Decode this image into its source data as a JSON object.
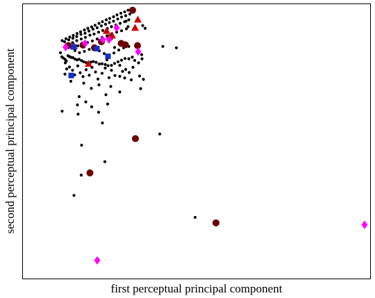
{
  "chart_data": {
    "type": "scatter",
    "title": "",
    "xlabel": "first perceptual principal component",
    "ylabel": "second perceptual principal component",
    "xlim": [
      0,
      100
    ],
    "ylim": [
      0,
      100
    ],
    "grid": false,
    "ticks": false,
    "colors": {
      "background": "#000000",
      "maroon": "#6b0000",
      "red": "#cc0000",
      "magenta": "#ff00ff",
      "blue": "#1030d0"
    },
    "series": [
      {
        "marker": "dot",
        "color": "#000000",
        "points": [
          [
            10.8,
            82.3
          ],
          [
            11.2,
            80.8
          ],
          [
            11.6,
            80.4
          ],
          [
            12.1,
            79.9
          ],
          [
            12.5,
            79.3
          ],
          [
            13.0,
            81.2
          ],
          [
            13.4,
            80.9
          ],
          [
            13.9,
            80.6
          ],
          [
            14.4,
            80.5
          ],
          [
            15.0,
            80.0
          ],
          [
            15.6,
            79.7
          ],
          [
            16.2,
            79.9
          ],
          [
            16.9,
            79.4
          ],
          [
            17.5,
            79.0
          ],
          [
            18.2,
            78.7
          ],
          [
            18.9,
            78.6
          ],
          [
            19.6,
            78.9
          ],
          [
            20.3,
            79.1
          ],
          [
            21.1,
            78.8
          ],
          [
            22.0,
            78.2
          ],
          [
            22.8,
            78.3
          ],
          [
            23.7,
            78.0
          ],
          [
            24.5,
            77.6
          ],
          [
            25.5,
            77.7
          ],
          [
            26.4,
            78.4
          ],
          [
            27.4,
            79.0
          ],
          [
            28.4,
            79.6
          ],
          [
            29.4,
            80.2
          ],
          [
            30.5,
            80.1
          ],
          [
            31.5,
            80.7
          ],
          [
            11.3,
            86.7
          ],
          [
            12.4,
            87.4
          ],
          [
            13.5,
            88.0
          ],
          [
            14.5,
            88.6
          ],
          [
            15.6,
            89.3
          ],
          [
            16.6,
            89.9
          ],
          [
            17.7,
            90.6
          ],
          [
            18.7,
            91.2
          ],
          [
            19.8,
            91.7
          ],
          [
            20.8,
            92.3
          ],
          [
            21.9,
            93.0
          ],
          [
            22.9,
            93.6
          ],
          [
            24.0,
            94.3
          ],
          [
            25.0,
            94.8
          ],
          [
            26.1,
            95.4
          ],
          [
            27.1,
            96.1
          ],
          [
            28.2,
            96.7
          ],
          [
            29.3,
            97.2
          ],
          [
            30.3,
            97.8
          ],
          [
            31.4,
            98.5
          ],
          [
            12.0,
            86.3
          ],
          [
            13.2,
            87.0
          ],
          [
            14.4,
            87.6
          ],
          [
            15.5,
            88.2
          ],
          [
            16.7,
            89.0
          ],
          [
            17.9,
            89.4
          ],
          [
            19.0,
            90.2
          ],
          [
            20.2,
            90.9
          ],
          [
            21.4,
            91.4
          ],
          [
            22.6,
            92.1
          ],
          [
            23.8,
            92.7
          ],
          [
            24.9,
            93.3
          ],
          [
            26.1,
            93.8
          ],
          [
            27.3,
            94.6
          ],
          [
            28.4,
            95.3
          ],
          [
            29.6,
            95.8
          ],
          [
            30.8,
            96.4
          ],
          [
            13.0,
            85.4
          ],
          [
            14.3,
            86.0
          ],
          [
            15.5,
            86.7
          ],
          [
            16.8,
            87.3
          ],
          [
            18.0,
            87.9
          ],
          [
            19.3,
            88.7
          ],
          [
            20.5,
            89.1
          ],
          [
            21.8,
            89.8
          ],
          [
            23.0,
            90.4
          ],
          [
            24.3,
            91.1
          ],
          [
            25.5,
            91.8
          ],
          [
            26.8,
            92.4
          ],
          [
            28.0,
            93.0
          ],
          [
            29.3,
            93.6
          ],
          [
            30.5,
            94.3
          ],
          [
            14.4,
            84.1
          ],
          [
            15.8,
            84.8
          ],
          [
            17.2,
            85.4
          ],
          [
            18.6,
            86.0
          ],
          [
            20.0,
            86.6
          ],
          [
            21.4,
            87.3
          ],
          [
            22.8,
            87.9
          ],
          [
            24.2,
            88.5
          ],
          [
            25.6,
            89.2
          ],
          [
            27.0,
            89.8
          ],
          [
            28.4,
            90.3
          ],
          [
            29.8,
            91.0
          ],
          [
            30.5,
            84.6
          ],
          [
            29.0,
            84.1
          ],
          [
            27.6,
            83.3
          ],
          [
            26.2,
            82.2
          ],
          [
            24.8,
            81.1
          ],
          [
            23.4,
            82.0
          ],
          [
            22.0,
            83.0
          ],
          [
            20.6,
            84.2
          ],
          [
            19.1,
            83.5
          ],
          [
            17.7,
            82.8
          ],
          [
            16.3,
            82.3
          ],
          [
            15.0,
            83.1
          ],
          [
            12.2,
            78.6
          ],
          [
            12.6,
            76.4
          ],
          [
            12.1,
            74.5
          ],
          [
            13.4,
            77.1
          ],
          [
            14.3,
            75.9
          ],
          [
            14.9,
            74.2
          ],
          [
            15.8,
            77.5
          ],
          [
            16.5,
            75.0
          ],
          [
            17.3,
            73.6
          ],
          [
            18.2,
            76.1
          ],
          [
            19.1,
            74.1
          ],
          [
            19.9,
            77.0
          ],
          [
            20.9,
            75.3
          ],
          [
            21.6,
            72.7
          ],
          [
            22.8,
            74.8
          ],
          [
            23.7,
            76.7
          ],
          [
            24.8,
            73.2
          ],
          [
            25.5,
            75.9
          ],
          [
            26.5,
            74.0
          ],
          [
            27.9,
            73.7
          ],
          [
            28.7,
            75.5
          ],
          [
            29.6,
            76.2
          ],
          [
            30.6,
            75.1
          ],
          [
            31.7,
            77.0
          ],
          [
            17.5,
            71.2
          ],
          [
            19.7,
            69.3
          ],
          [
            21.9,
            70.6
          ],
          [
            23.9,
            67.0
          ],
          [
            25.3,
            70.0
          ],
          [
            13.8,
            71.9
          ],
          [
            16.2,
            66.3
          ],
          [
            18.1,
            64.4
          ],
          [
            19.8,
            62.6
          ],
          [
            15.7,
            63.3
          ],
          [
            11.3,
            61.0
          ],
          [
            15.9,
            59.9
          ],
          [
            21.8,
            60.6
          ],
          [
            22.9,
            56.7
          ],
          [
            24.4,
            63.6
          ],
          [
            27.9,
            68.0
          ],
          [
            27.9,
            77.7
          ],
          [
            29.3,
            73.1
          ],
          [
            31.2,
            72.4
          ],
          [
            33.6,
            73.8
          ],
          [
            34.3,
            80.1
          ],
          [
            33.3,
            78.6
          ],
          [
            34.7,
            72.6
          ],
          [
            33.9,
            69.2
          ],
          [
            34.2,
            81.6
          ],
          [
            34.5,
            92.2
          ],
          [
            35.2,
            91.2
          ],
          [
            29.7,
            93.8
          ],
          [
            30.3,
            91.8
          ],
          [
            24.2,
            79.7
          ],
          [
            32.2,
            79.5
          ],
          [
            26.4,
            84.2
          ],
          [
            40.3,
            84.6
          ],
          [
            44.2,
            84.1
          ],
          [
            39.4,
            52.7
          ],
          [
            16.9,
            48.6
          ],
          [
            23.6,
            42.6
          ],
          [
            16.8,
            37.7
          ],
          [
            14.7,
            30.3
          ],
          [
            49.6,
            22.3
          ]
        ]
      },
      {
        "marker": "circle",
        "color": "#6b0000",
        "points": [
          [
            31.6,
            97.8
          ],
          [
            33.0,
            84.9
          ],
          [
            13.1,
            84.9
          ],
          [
            17.3,
            85.1
          ],
          [
            22.6,
            86.3
          ],
          [
            29.5,
            85.2
          ],
          [
            32.4,
            51.0
          ],
          [
            19.3,
            38.5
          ],
          [
            55.6,
            20.3
          ],
          [
            25.0,
            87.8
          ],
          [
            20.6,
            84.1
          ],
          [
            28.3,
            85.7
          ]
        ]
      },
      {
        "marker": "triangle",
        "color": "#cc0000",
        "points": [
          [
            33.1,
            94.3
          ],
          [
            32.3,
            91.3
          ],
          [
            24.1,
            90.2
          ],
          [
            25.7,
            88.5
          ],
          [
            18.9,
            78.2
          ],
          [
            14.7,
            84.6
          ]
        ]
      },
      {
        "marker": "diamond",
        "color": "#ff00ff",
        "points": [
          [
            23.0,
            87.1
          ],
          [
            27.0,
            91.4
          ],
          [
            17.9,
            85.7
          ],
          [
            12.3,
            84.3
          ],
          [
            33.2,
            82.7
          ],
          [
            98.4,
            19.6
          ],
          [
            21.4,
            6.6
          ],
          [
            24.8,
            87.1
          ]
        ]
      },
      {
        "marker": "square",
        "color": "#1030d0",
        "points": [
          [
            21.3,
            83.8
          ],
          [
            13.9,
            74.0
          ],
          [
            14.6,
            84.4
          ],
          [
            24.5,
            81.0
          ]
        ]
      }
    ]
  }
}
